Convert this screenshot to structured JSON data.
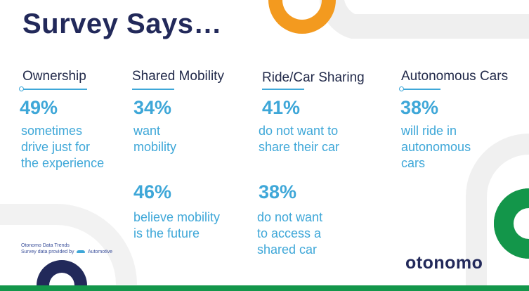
{
  "title": "Survey Says…",
  "columns": [
    {
      "heading": "Ownership",
      "stat1": {
        "value": "49%",
        "text": "sometimes\ndrive just for\nthe experience"
      }
    },
    {
      "heading": "Shared Mobility",
      "stat1": {
        "value": "34%",
        "text": "want\nmobility"
      },
      "stat2": {
        "value": "46%",
        "text": "believe mobility\nis the future"
      }
    },
    {
      "heading": "Ride/Car Sharing",
      "stat1": {
        "value": "41%",
        "text": "do not want to\nshare their car"
      },
      "stat2": {
        "value": "38%",
        "text": "do not want\nto access a\nshared car"
      }
    },
    {
      "heading": "Autonomous Cars",
      "stat1": {
        "value": "38%",
        "text": "will ride in\nautonomous\ncars"
      }
    }
  ],
  "credit": {
    "line1": "Otonomo Data Trends",
    "line2": "Survey data provided by",
    "line2_brand": "Automotive"
  },
  "logo": "otonomo",
  "colors": {
    "navy": "#22295a",
    "accent_blue": "#3ea7d8",
    "orange": "#f39a1f",
    "green": "#13964a",
    "grey_ring": "#eeeeee"
  }
}
